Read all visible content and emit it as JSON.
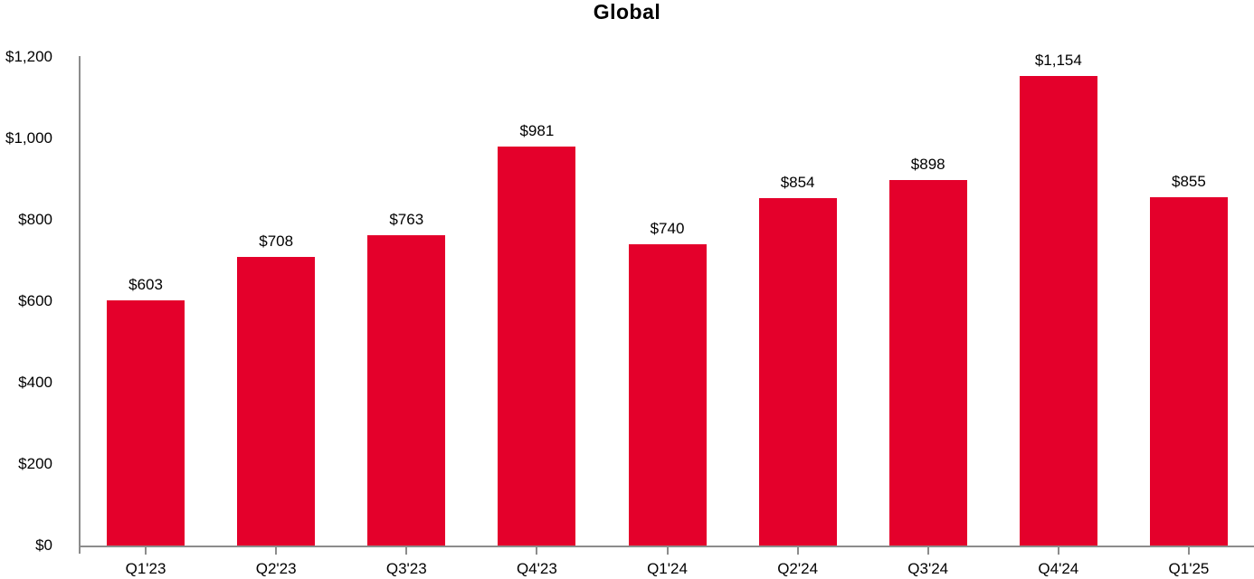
{
  "title": "Global",
  "colors": {
    "bar": "#E4002B",
    "axis": "#8C8C8C",
    "text": "#000000",
    "background": "#FFFFFF"
  },
  "chart_data": {
    "type": "bar",
    "title": "Global",
    "categories": [
      "Q1'23",
      "Q2'23",
      "Q3'23",
      "Q4'23",
      "Q1'24",
      "Q2'24",
      "Q3'24",
      "Q4'24",
      "Q1'25"
    ],
    "values": [
      603,
      708,
      763,
      981,
      740,
      854,
      898,
      1154,
      855
    ],
    "value_labels": [
      "$603",
      "$708",
      "$763",
      "$981",
      "$740",
      "$854",
      "$898",
      "$1,154",
      "$855"
    ],
    "y_ticks": [
      "$0",
      "$200",
      "$400",
      "$600",
      "$800",
      "$1,000",
      "$1,200"
    ],
    "y_tick_values": [
      0,
      200,
      400,
      600,
      800,
      1000,
      1200
    ],
    "xlabel": "",
    "ylabel": "",
    "ylim": [
      0,
      1200
    ],
    "grid": false,
    "legend_position": "none",
    "bar_color": "#E4002B"
  }
}
